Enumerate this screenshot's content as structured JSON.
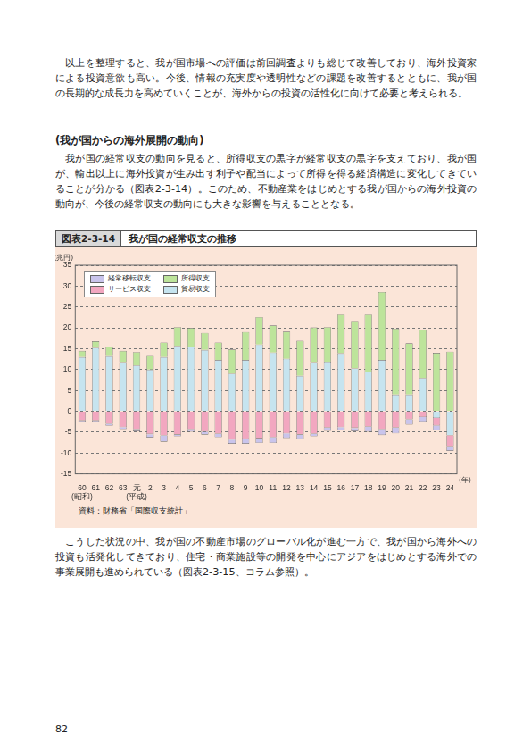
{
  "page": {
    "paragraphs_before_heading": [
      "以上を整理すると、我が国市場への評価は前回調査よりも総じて改善しており、海外投資家による投資意欲も高い。今後、情報の充実度や透明性などの課題を改善するとともに、我が国の長期的な成長力を高めていくことが、海外からの投資の活性化に向けて必要と考えられる。"
    ],
    "heading": "(我が国からの海外展開の動向)",
    "paragraphs_after_heading": [
      "我が国の経常収支の動向を見ると、所得収支の黒字が経常収支の黒字を支えており、我が国が、輸出以上に海外投資が生み出す利子や配当によって所得を得る経済構造に変化してきていることが分かる（図表2-3-14）。このため、不動産業をはじめとする我が国からの海外投資の動向が、今後の経常収支の動向にも大きな影響を与えることとなる。"
    ],
    "paragraphs_after_chart": [
      "こうした状況の中、我が国の不動産市場のグローバル化が進む一方で、我が国から海外への投資も活発化してきており、住宅・商業施設等の開発を中心にアジアをはじめとする海外での事業展開も進められている（図表2-3-15、コラム参照）。"
    ],
    "page_number": "82"
  },
  "chart_data": {
    "type": "bar",
    "figure_number": "図表2-3-14",
    "title": "我が国の経常収支の推移",
    "source": "資料：財務省「国際収支統計」",
    "ylabel": "(兆円)",
    "xlabel": "(年)",
    "categories": [
      "60",
      "61",
      "62",
      "63",
      "元",
      "2",
      "3",
      "4",
      "5",
      "6",
      "7",
      "8",
      "9",
      "10",
      "11",
      "12",
      "13",
      "14",
      "15",
      "16",
      "17",
      "18",
      "19",
      "20",
      "21",
      "22",
      "23",
      "24"
    ],
    "x_sublabels": [
      "(昭和)",
      null,
      null,
      null,
      "(平成)",
      null,
      null,
      null,
      null,
      null,
      null,
      null,
      null,
      null,
      null,
      null,
      null,
      null,
      null,
      null,
      null,
      null,
      null,
      null,
      null,
      null,
      null,
      null
    ],
    "series": [
      {
        "name": "経常移転収支",
        "color": "#c9c4ec",
        "values": [
          -0.3,
          -0.3,
          -0.5,
          -0.5,
          -0.5,
          -0.8,
          -1.5,
          -0.4,
          -0.6,
          -0.7,
          -0.8,
          -1.0,
          -1.2,
          -1.1,
          -1.4,
          -1.1,
          -1.0,
          -0.6,
          -0.8,
          -0.8,
          -0.8,
          -1.2,
          -1.4,
          -1.4,
          -1.3,
          -1.1,
          -1.1,
          -1.1
        ]
      },
      {
        "name": "所得収支",
        "color": "#bde49b",
        "values": [
          1.5,
          1.6,
          2.3,
          2.7,
          3.2,
          3.3,
          3.5,
          4.5,
          4.5,
          4.1,
          4.2,
          5.8,
          6.7,
          6.6,
          6.5,
          6.5,
          8.4,
          8.3,
          8.3,
          9.3,
          11.4,
          13.7,
          16.3,
          15.8,
          12.3,
          11.6,
          14.0,
          14.3
        ]
      },
      {
        "name": "サービス収支",
        "color": "#f2a7c0",
        "values": [
          -2.2,
          -2.2,
          -3.0,
          -3.8,
          -4.3,
          -5.5,
          -5.8,
          -5.6,
          -4.3,
          -4.9,
          -5.4,
          -6.8,
          -6.6,
          -6.5,
          -6.2,
          -5.3,
          -5.6,
          -5.4,
          -3.9,
          -3.8,
          -4.0,
          -3.7,
          -4.3,
          -3.9,
          -1.9,
          -1.4,
          -1.8,
          -2.6
        ]
      },
      {
        "name": "貿易収支",
        "color": "#c6e4ef",
        "values": [
          13.0,
          15.2,
          13.2,
          11.8,
          11.0,
          10.0,
          13.0,
          15.7,
          15.5,
          14.7,
          12.3,
          9.0,
          12.3,
          16.0,
          14.1,
          12.6,
          8.5,
          11.8,
          11.9,
          13.9,
          10.3,
          9.5,
          12.3,
          4.0,
          4.0,
          8.0,
          -1.6,
          -5.8
        ]
      }
    ],
    "ylim": [
      -15,
      35
    ],
    "yticks": [
      -15,
      -10,
      -5,
      0,
      5,
      10,
      15,
      20,
      25,
      30,
      35
    ],
    "grid": true,
    "stacked": true,
    "legend": "top-left"
  }
}
